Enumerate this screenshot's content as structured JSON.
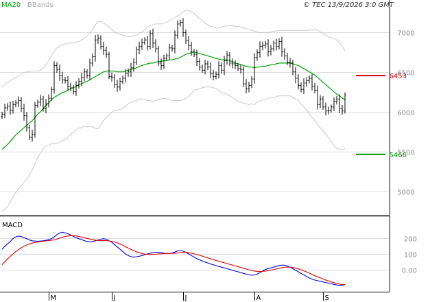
{
  "header": {
    "ma_label": "MA20",
    "bb_label": "BBands",
    "copyright": "© TEC 13/9/2026 3:0 GMT"
  },
  "colors": {
    "ma": "#00a000",
    "bands": "#c8c8c8",
    "price": "#000000",
    "macd": "#0000dd",
    "signal": "#dd0000",
    "resistance": "#cc0000",
    "support": "#009900",
    "grid": "#dddddd"
  },
  "chart_data": [
    {
      "type": "ohlc",
      "title": "",
      "ylim": [
        4700,
        7400
      ],
      "yticks": [
        {
          "value": 5000,
          "label": "5000"
        },
        {
          "value": 5500,
          "label": "5500"
        },
        {
          "value": 6000,
          "label": "6000"
        },
        {
          "value": 6500,
          "label": "6500"
        },
        {
          "value": 7000,
          "label": "7000"
        }
      ],
      "months": [
        {
          "label": "M",
          "index": 17
        },
        {
          "label": "J",
          "index": 40
        },
        {
          "label": "J",
          "index": 66
        },
        {
          "label": "A",
          "index": 92
        },
        {
          "label": "S",
          "index": 117
        }
      ],
      "legend": [
        "MA20",
        "BBands"
      ],
      "levels": [
        {
          "name": "resistance",
          "value": 6453,
          "label": "6453"
        },
        {
          "name": "support",
          "value": 5466,
          "label": "5466"
        }
      ],
      "close": [
        5970,
        6050,
        6070,
        6020,
        6090,
        6110,
        6140,
        6040,
        5950,
        5800,
        5680,
        5720,
        6080,
        6120,
        6160,
        6040,
        6100,
        6170,
        6280,
        6580,
        6530,
        6450,
        6400,
        6390,
        6320,
        6300,
        6250,
        6330,
        6380,
        6430,
        6500,
        6450,
        6610,
        6690,
        6900,
        6920,
        6820,
        6770,
        6720,
        6440,
        6430,
        6340,
        6310,
        6380,
        6420,
        6480,
        6500,
        6550,
        6620,
        6780,
        6820,
        6870,
        6900,
        6820,
        6980,
        6860,
        6790,
        6610,
        6580,
        6670,
        6700,
        6800,
        6790,
        6960,
        7100,
        7120,
        6990,
        6890,
        6830,
        6750,
        6720,
        6630,
        6560,
        6520,
        6600,
        6560,
        6480,
        6440,
        6470,
        6580,
        6520,
        6640,
        6710,
        6610,
        6600,
        6580,
        6540,
        6530,
        6350,
        6290,
        6330,
        6410,
        6680,
        6740,
        6820,
        6830,
        6850,
        6750,
        6790,
        6860,
        6820,
        6880,
        6750,
        6700,
        6620,
        6610,
        6500,
        6420,
        6330,
        6280,
        6360,
        6390,
        6420,
        6320,
        6270,
        6090,
        6160,
        6060,
        6010,
        6020,
        6060,
        6130,
        6160,
        6040,
        6010,
        6210
      ],
      "ma20": [
        5530,
        5560,
        5590,
        5630,
        5670,
        5710,
        5740,
        5770,
        5800,
        5830,
        5860,
        5890,
        5930,
        5970,
        6000,
        6040,
        6080,
        6110,
        6150,
        6180,
        6200,
        6220,
        6240,
        6250,
        6270,
        6290,
        6300,
        6320,
        6340,
        6350,
        6370,
        6380,
        6400,
        6420,
        6440,
        6460,
        6480,
        6500,
        6510,
        6510,
        6510,
        6510,
        6500,
        6500,
        6500,
        6510,
        6520,
        6530,
        6540,
        6550,
        6570,
        6580,
        6590,
        6600,
        6610,
        6610,
        6620,
        6630,
        6630,
        6640,
        6640,
        6650,
        6650,
        6660,
        6670,
        6680,
        6700,
        6720,
        6730,
        6740,
        6750,
        6740,
        6730,
        6720,
        6710,
        6700,
        6690,
        6680,
        6670,
        6660,
        6650,
        6650,
        6650,
        6640,
        6630,
        6610,
        6600,
        6590,
        6580,
        6570,
        6560,
        6560,
        6550,
        6560,
        6560,
        6570,
        6570,
        6580,
        6590,
        6590,
        6600,
        6610,
        6610,
        6610,
        6610,
        6610,
        6600,
        6590,
        6580,
        6560,
        6540,
        6520,
        6500,
        6480,
        6460,
        6430,
        6400,
        6370,
        6340,
        6310,
        6280,
        6250,
        6220,
        6200,
        6170,
        6150
      ],
      "upper": [
        6310,
        6340,
        6370,
        6390,
        6410,
        6430,
        6450,
        6470,
        6490,
        6500,
        6510,
        6510,
        6510,
        6510,
        6520,
        6550,
        6590,
        6640,
        6700,
        6760,
        6800,
        6820,
        6840,
        6850,
        6860,
        6860,
        6860,
        6870,
        6880,
        6900,
        6920,
        6950,
        6980,
        7030,
        7090,
        7130,
        7130,
        7110,
        7090,
        7060,
        7030,
        7000,
        6980,
        6970,
        6960,
        6950,
        6940,
        6940,
        6950,
        6960,
        6980,
        7000,
        7030,
        7060,
        7080,
        7090,
        7100,
        7100,
        7100,
        7110,
        7120,
        7140,
        7160,
        7180,
        7200,
        7220,
        7250,
        7270,
        7270,
        7250,
        7230,
        7200,
        7170,
        7140,
        7110,
        7090,
        7070,
        7060,
        7050,
        7050,
        7060,
        7070,
        7080,
        7080,
        7080,
        7070,
        7070,
        7060,
        7050,
        7040,
        7030,
        7020,
        7010,
        7000,
        6990,
        6990,
        6990,
        6990,
        7000,
        7010,
        7010,
        7020,
        7020,
        7020,
        7020,
        7020,
        7020,
        7020,
        7020,
        7020,
        7020,
        7020,
        7020,
        7030,
        7030,
        7020,
        7000,
        6980,
        6960,
        6940,
        6930,
        6920,
        6900,
        6870,
        6820,
        6760
      ],
      "lower": [
        4750,
        4780,
        4810,
        4870,
        4930,
        4990,
        5030,
        5070,
        5110,
        5160,
        5210,
        5270,
        5350,
        5430,
        5480,
        5530,
        5570,
        5580,
        5600,
        5600,
        5600,
        5620,
        5640,
        5650,
        5680,
        5720,
        5740,
        5770,
        5800,
        5800,
        5820,
        5810,
        5820,
        5810,
        5790,
        5790,
        5830,
        5890,
        5930,
        5960,
        5990,
        6020,
        6020,
        6030,
        6040,
        6070,
        6100,
        6120,
        6130,
        6140,
        6160,
        6160,
        6150,
        6140,
        6140,
        6130,
        6140,
        6160,
        6160,
        6170,
        6160,
        6160,
        6140,
        6140,
        6140,
        6140,
        6150,
        6170,
        6190,
        6230,
        6270,
        6280,
        6290,
        6300,
        6310,
        6310,
        6310,
        6300,
        6290,
        6270,
        6240,
        6230,
        6220,
        6200,
        6180,
        6150,
        6130,
        6120,
        6110,
        6100,
        6090,
        6100,
        6090,
        6120,
        6130,
        6150,
        6150,
        6170,
        6180,
        6170,
        6190,
        6200,
        6200,
        6200,
        6200,
        6200,
        6180,
        6160,
        6140,
        6100,
        6060,
        6020,
        5980,
        5930,
        5890,
        5840,
        5800,
        5760,
        5720,
        5680,
        5630,
        5580,
        5540,
        5530,
        5520,
        5540
      ]
    },
    {
      "type": "line",
      "title": "MACD",
      "ylim": [
        -130,
        330
      ],
      "yticks": [
        {
          "value": 200,
          "label": "200"
        },
        {
          "value": 100,
          "label": "100"
        },
        {
          "value": 0,
          "label": "0.00"
        }
      ],
      "series": [
        {
          "name": "MACD",
          "values": [
            130,
            150,
            165,
            180,
            200,
            210,
            215,
            212,
            205,
            198,
            190,
            185,
            183,
            182,
            183,
            185,
            188,
            192,
            198,
            210,
            225,
            235,
            240,
            236,
            230,
            222,
            213,
            205,
            198,
            192,
            186,
            180,
            178,
            180,
            185,
            190,
            195,
            198,
            195,
            185,
            175,
            160,
            145,
            130,
            115,
            100,
            90,
            82,
            80,
            82,
            85,
            90,
            95,
            100,
            105,
            108,
            110,
            110,
            108,
            105,
            103,
            103,
            106,
            112,
            120,
            122,
            118,
            110,
            100,
            90,
            80,
            70,
            62,
            55,
            48,
            42,
            36,
            30,
            25,
            20,
            15,
            10,
            5,
            0,
            -5,
            -10,
            -15,
            -20,
            -25,
            -30,
            -35,
            -37,
            -35,
            -30,
            -20,
            -10,
            0,
            6,
            10,
            15,
            20,
            26,
            28,
            28,
            22,
            14,
            5,
            -5,
            -15,
            -25,
            -35,
            -45,
            -55,
            -62,
            -68,
            -72,
            -76,
            -80,
            -84,
            -88,
            -92,
            -96,
            -100,
            -102,
            -104,
            -96
          ]
        },
        {
          "name": "Signal",
          "values": [
            30,
            50,
            68,
            85,
            100,
            115,
            128,
            140,
            150,
            158,
            165,
            170,
            174,
            177,
            180,
            182,
            184,
            186,
            188,
            191,
            196,
            202,
            208,
            213,
            216,
            218,
            218,
            216,
            213,
            209,
            205,
            200,
            196,
            192,
            189,
            187,
            186,
            186,
            186,
            184,
            181,
            177,
            171,
            164,
            156,
            147,
            138,
            129,
            121,
            114,
            108,
            103,
            99,
            97,
            96,
            97,
            98,
            100,
            101,
            102,
            103,
            103,
            104,
            105,
            107,
            109,
            110,
            110,
            108,
            105,
            101,
            96,
            91,
            86,
            80,
            75,
            69,
            64,
            58,
            53,
            48,
            43,
            38,
            33,
            28,
            23,
            18,
            13,
            8,
            3,
            -2,
            -6,
            -10,
            -12,
            -13,
            -12,
            -10,
            -7,
            -4,
            -1,
            3,
            7,
            11,
            14,
            16,
            15,
            13,
            9,
            4,
            -2,
            -9,
            -16,
            -24,
            -32,
            -40,
            -47,
            -54,
            -61,
            -68,
            -74,
            -80,
            -85,
            -90,
            -94,
            -97,
            -98
          ]
        }
      ]
    }
  ]
}
